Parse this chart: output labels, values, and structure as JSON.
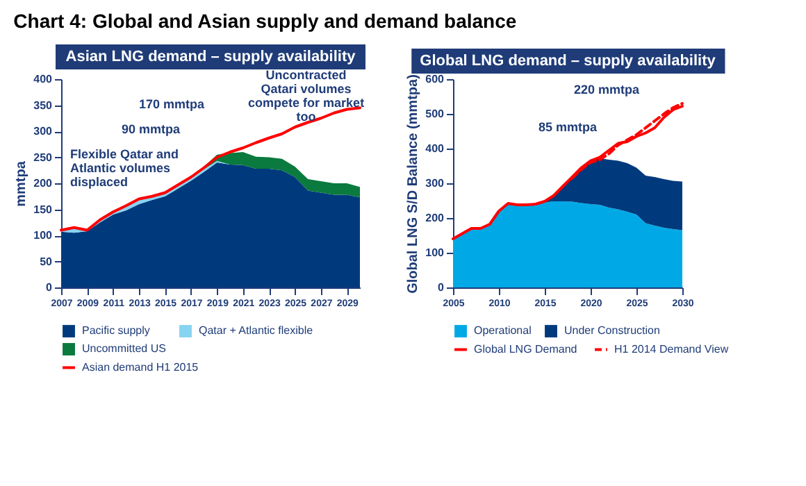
{
  "chart_data": [
    {
      "type": "area",
      "title": "Chart 4:  Global and Asian supply and demand balance",
      "subtitle": "Asian LNG demand – supply availability",
      "ylabel": "mmtpa",
      "stacked": true,
      "legend": "bottom",
      "x": [
        2007,
        2008,
        2009,
        2010,
        2011,
        2012,
        2013,
        2014,
        2015,
        2016,
        2017,
        2018,
        2019,
        2020,
        2021,
        2022,
        2023,
        2024,
        2025,
        2026,
        2027,
        2028,
        2029,
        2030
      ],
      "xlim": [
        2007,
        2030
      ],
      "xticks": [
        2007,
        2009,
        2011,
        2013,
        2015,
        2017,
        2019,
        2021,
        2023,
        2025,
        2027,
        2029
      ],
      "ylim": [
        0,
        400
      ],
      "yticks": [
        0,
        50,
        100,
        150,
        200,
        250,
        300,
        350,
        400
      ],
      "series": [
        {
          "name": "Pacific supply",
          "color": "#003a7d",
          "values": [
            107,
            105,
            108,
            125,
            140,
            148,
            160,
            168,
            175,
            190,
            205,
            222,
            240,
            236,
            235,
            228,
            228,
            225,
            212,
            186,
            182,
            178,
            178,
            173
          ]
        },
        {
          "name": "Qatar + Atlantic flexible",
          "color": "#87d3f2",
          "values": [
            3,
            8,
            2,
            5,
            5,
            10,
            12,
            8,
            6,
            8,
            5,
            5,
            3,
            0,
            0,
            0,
            0,
            0,
            0,
            0,
            0,
            0,
            0,
            0
          ]
        },
        {
          "name": "Uncommitted US",
          "color": "#0a7a3e",
          "values": [
            0,
            0,
            0,
            0,
            0,
            0,
            0,
            0,
            0,
            0,
            2,
            5,
            12,
            22,
            25,
            23,
            22,
            22,
            20,
            22,
            22,
            22,
            22,
            20
          ]
        },
        {
          "name": "Asian demand H1 2015",
          "type": "line",
          "color": "#ff0000",
          "line_style": "solid",
          "values": [
            110,
            115,
            110,
            130,
            145,
            157,
            170,
            175,
            182,
            197,
            212,
            230,
            250,
            260,
            268,
            278,
            287,
            295,
            308,
            317,
            325,
            335,
            342,
            345
          ]
        }
      ],
      "annotations": [
        "Flexible Qatar and Atlantic volumes displaced",
        "90 mmtpa",
        "170 mmtpa",
        "Uncontracted Qatari volumes compete for market too"
      ]
    },
    {
      "type": "area",
      "title": "Global LNG demand – supply availability",
      "ylabel": "Global LNG S/D Balance (mmtpa)",
      "stacked": true,
      "legend": "bottom",
      "x": [
        2005,
        2006,
        2007,
        2008,
        2009,
        2010,
        2011,
        2012,
        2013,
        2014,
        2015,
        2016,
        2017,
        2018,
        2019,
        2020,
        2021,
        2022,
        2023,
        2024,
        2025,
        2026,
        2027,
        2028,
        2029,
        2030
      ],
      "xlim": [
        2005,
        2030
      ],
      "xticks": [
        2005,
        2010,
        2015,
        2020,
        2025,
        2030
      ],
      "ylim": [
        0,
        600
      ],
      "yticks": [
        0,
        100,
        200,
        300,
        400,
        500,
        600
      ],
      "series": [
        {
          "name": "Operational",
          "color": "#00a9e6",
          "values": [
            140,
            155,
            170,
            170,
            180,
            220,
            240,
            238,
            238,
            240,
            245,
            248,
            248,
            247,
            243,
            240,
            238,
            230,
            225,
            218,
            210,
            185,
            178,
            172,
            168,
            165
          ]
        },
        {
          "name": "Under Construction",
          "color": "#003a7d",
          "values": [
            0,
            0,
            0,
            0,
            0,
            0,
            0,
            0,
            0,
            0,
            3,
            14,
            42,
            68,
            97,
            125,
            134,
            138,
            140,
            140,
            135,
            137,
            140,
            140,
            139,
            140
          ]
        },
        {
          "name": "Global LNG Demand",
          "type": "line",
          "color": "#ff0000",
          "line_style": "solid",
          "values": [
            140,
            155,
            170,
            170,
            182,
            220,
            242,
            238,
            238,
            240,
            248,
            265,
            292,
            318,
            345,
            365,
            375,
            395,
            415,
            420,
            435,
            445,
            460,
            490,
            512,
            522
          ]
        },
        {
          "name": "H1 2014 Demand View",
          "type": "line",
          "color": "#ff0000",
          "line_style": "dashed",
          "x": [
            2018,
            2019,
            2020,
            2021,
            2022,
            2023,
            2024,
            2025,
            2026,
            2027,
            2028,
            2029,
            2030
          ],
          "values": [
            315,
            340,
            360,
            368,
            385,
            410,
            425,
            440,
            460,
            480,
            500,
            518,
            530
          ]
        }
      ],
      "annotations": [
        "85 mmtpa",
        "220 mmtpa"
      ]
    }
  ]
}
